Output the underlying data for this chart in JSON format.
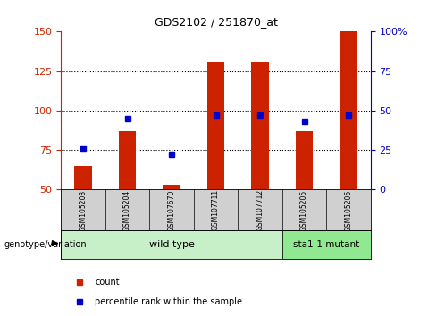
{
  "title": "GDS2102 / 251870_at",
  "samples": [
    "GSM105203",
    "GSM105204",
    "GSM107670",
    "GSM107711",
    "GSM107712",
    "GSM105205",
    "GSM105206"
  ],
  "counts": [
    65,
    87,
    53,
    131,
    131,
    87,
    150
  ],
  "percentile_ranks": [
    26,
    45,
    22,
    47,
    47,
    43,
    47
  ],
  "left_ylim": [
    50,
    150
  ],
  "left_yticks": [
    50,
    75,
    100,
    125,
    150
  ],
  "right_ylim": [
    0,
    100
  ],
  "right_yticks": [
    0,
    25,
    50,
    75,
    100
  ],
  "right_yticklabels": [
    "0",
    "25",
    "50",
    "75",
    "100%"
  ],
  "bar_color": "#cc2200",
  "dot_color": "#0000cc",
  "grid_color": "#000000",
  "bg_color": "#ffffff",
  "wild_type_label": "wild type",
  "mutant_label": "sta1-1 mutant",
  "genotype_label": "genotype/variation",
  "legend_count_label": "count",
  "legend_percentile_label": "percentile rank within the sample",
  "left_axis_color": "#cc2200",
  "right_axis_color": "#0000cc",
  "panel_bg_color": "#d0d0d0",
  "wt_bg_color": "#c8f0c8",
  "mut_bg_color": "#90e890"
}
